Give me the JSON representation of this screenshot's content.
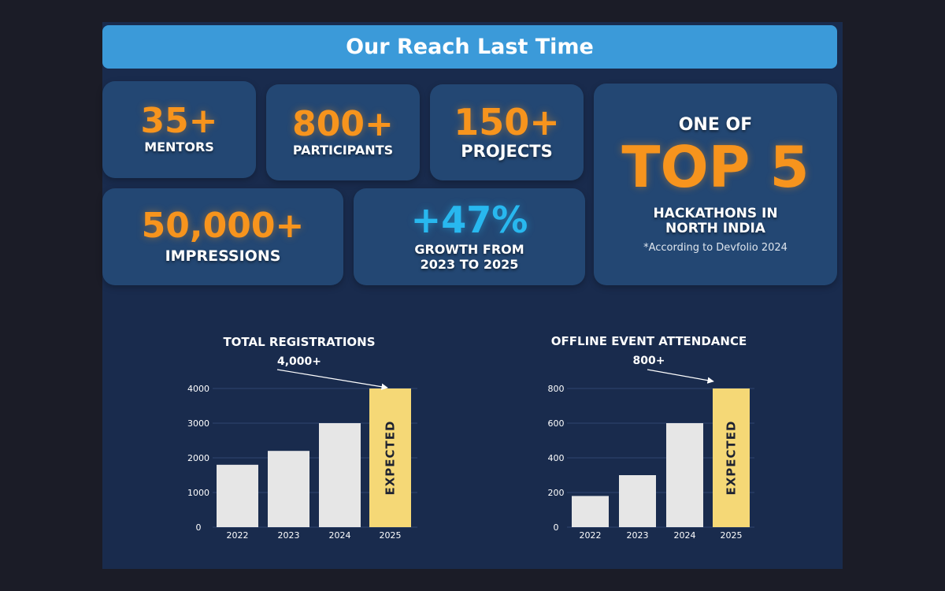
{
  "header": {
    "title": "Our Reach Last Time"
  },
  "stats": {
    "mentors": {
      "value": "35+",
      "label": "MENTORS"
    },
    "participants": {
      "value": "800+",
      "label": "PARTICIPANTS"
    },
    "projects": {
      "value": "150+",
      "label": "PROJECTS"
    },
    "impressions": {
      "value": "50,000+",
      "label": "IMPRESSIONS"
    },
    "growth": {
      "value": "+47%",
      "label_line1": "GROWTH FROM",
      "label_line2": "2023 TO 2025"
    },
    "ranking": {
      "prefix": "ONE OF",
      "headline": "TOP 5",
      "line1": "HACKATHONS IN",
      "line2": "NORTH INDIA",
      "note": "*According to Devfolio 2024"
    }
  },
  "colors": {
    "background": "#192b4d",
    "card": "#234773",
    "accent_orange": "#f7941d",
    "accent_blue": "#28b8ef",
    "bar": "#e6e6e6",
    "bar_expected": "#f5d876",
    "title_bar": "#3b9ad9"
  },
  "chart_data": [
    {
      "type": "bar",
      "title": "TOTAL REGISTRATIONS",
      "callout": "4,000+",
      "categories": [
        "2022",
        "2023",
        "2024",
        "2025"
      ],
      "values": [
        1800,
        2200,
        3000,
        4000
      ],
      "highlight_index": 3,
      "highlight_label": "EXPECTED",
      "ylim": [
        0,
        4000
      ],
      "yticks": [
        0,
        1000,
        2000,
        3000,
        4000
      ],
      "grid": true
    },
    {
      "type": "bar",
      "title": "OFFLINE EVENT ATTENDANCE",
      "callout": "800+",
      "categories": [
        "2022",
        "2023",
        "2024",
        "2025"
      ],
      "values": [
        180,
        300,
        600,
        800
      ],
      "highlight_index": 3,
      "highlight_label": "EXPECTED",
      "ylim": [
        0,
        800
      ],
      "yticks": [
        0,
        200,
        400,
        600,
        800
      ],
      "grid": true
    }
  ]
}
